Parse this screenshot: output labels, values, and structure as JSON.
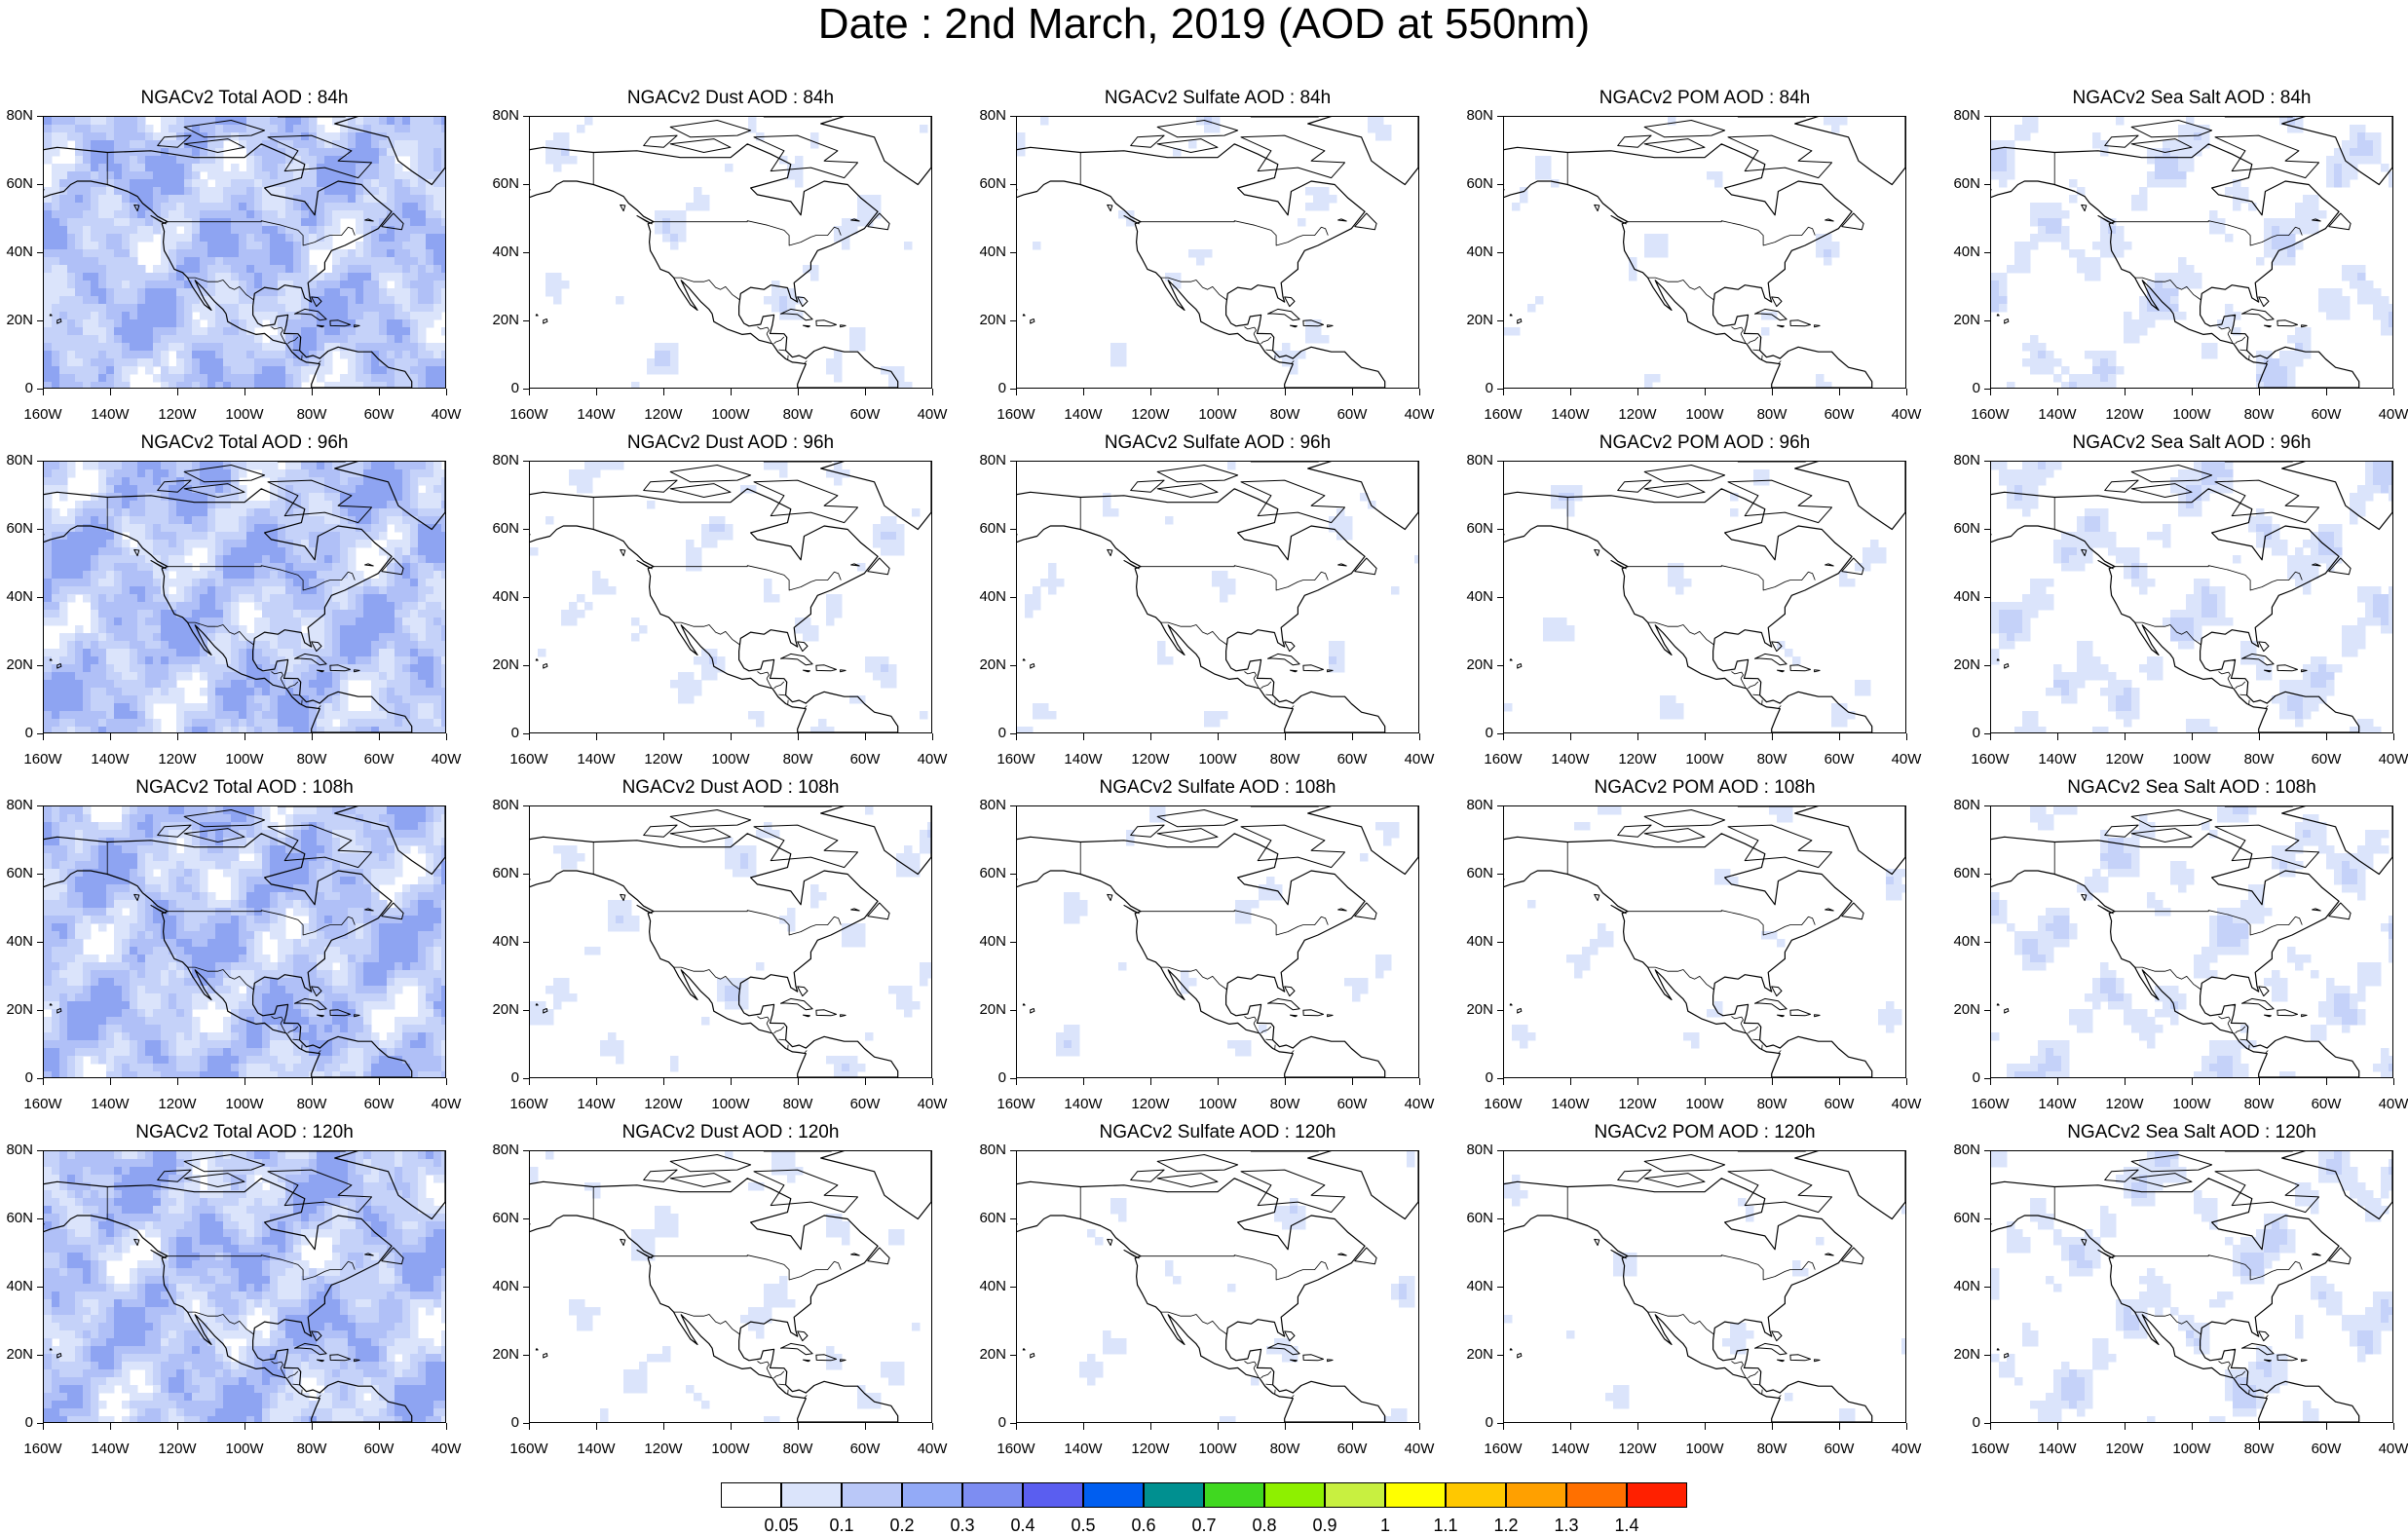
{
  "title": "Date : 2nd March, 2019 (AOD at 550nm)",
  "axes": {
    "lat_labels": [
      "80N",
      "60N",
      "40N",
      "20N",
      "0"
    ],
    "lon_labels": [
      "160W",
      "140W",
      "120W",
      "100W",
      "80W",
      "60W",
      "40W"
    ],
    "lat_range": [
      0,
      80
    ],
    "lon_range": [
      -160,
      -40
    ]
  },
  "species": [
    {
      "key": "total",
      "intensity": 1.0
    },
    {
      "key": "dust",
      "intensity": 0.35
    },
    {
      "key": "sulfate",
      "intensity": 0.22
    },
    {
      "key": "pom",
      "intensity": 0.2
    },
    {
      "key": "seasalt",
      "intensity": 0.6
    }
  ],
  "panels": [
    [
      "NGACv2 Total AOD : 84h",
      "NGACv2 Dust AOD : 84h",
      "NGACv2 Sulfate AOD : 84h",
      "NGACv2 POM AOD : 84h",
      "NGACv2 Sea Salt AOD : 84h"
    ],
    [
      "NGACv2 Total AOD : 96h",
      "NGACv2 Dust AOD : 96h",
      "NGACv2 Sulfate AOD : 96h",
      "NGACv2 POM AOD : 96h",
      "NGACv2 Sea Salt AOD : 96h"
    ],
    [
      "NGACv2 Total AOD : 108h",
      "NGACv2 Dust AOD : 108h",
      "NGACv2 Sulfate AOD : 108h",
      "NGACv2 POM AOD : 108h",
      "NGACv2 Sea Salt AOD : 108h"
    ],
    [
      "NGACv2 Total AOD : 120h",
      "NGACv2 Dust AOD : 120h",
      "NGACv2 Sulfate AOD : 120h",
      "NGACv2 POM AOD : 120h",
      "NGACv2 Sea Salt  AOD : 120h"
    ]
  ],
  "colorbar": {
    "levels": [
      "0.05",
      "0.1",
      "0.2",
      "0.3",
      "0.4",
      "0.5",
      "0.6",
      "0.7",
      "0.8",
      "0.9",
      "1",
      "1.1",
      "1.2",
      "1.3",
      "1.4"
    ],
    "colors": [
      "#ffffff",
      "#dbe4fb",
      "#bac8f8",
      "#93aaf7",
      "#7d8df2",
      "#5a5ef0",
      "#005ef0",
      "#009090",
      "#40d820",
      "#8ef000",
      "#c8f040",
      "#ffff00",
      "#ffc800",
      "#ffa000",
      "#ff7000",
      "#ff2000"
    ]
  }
}
